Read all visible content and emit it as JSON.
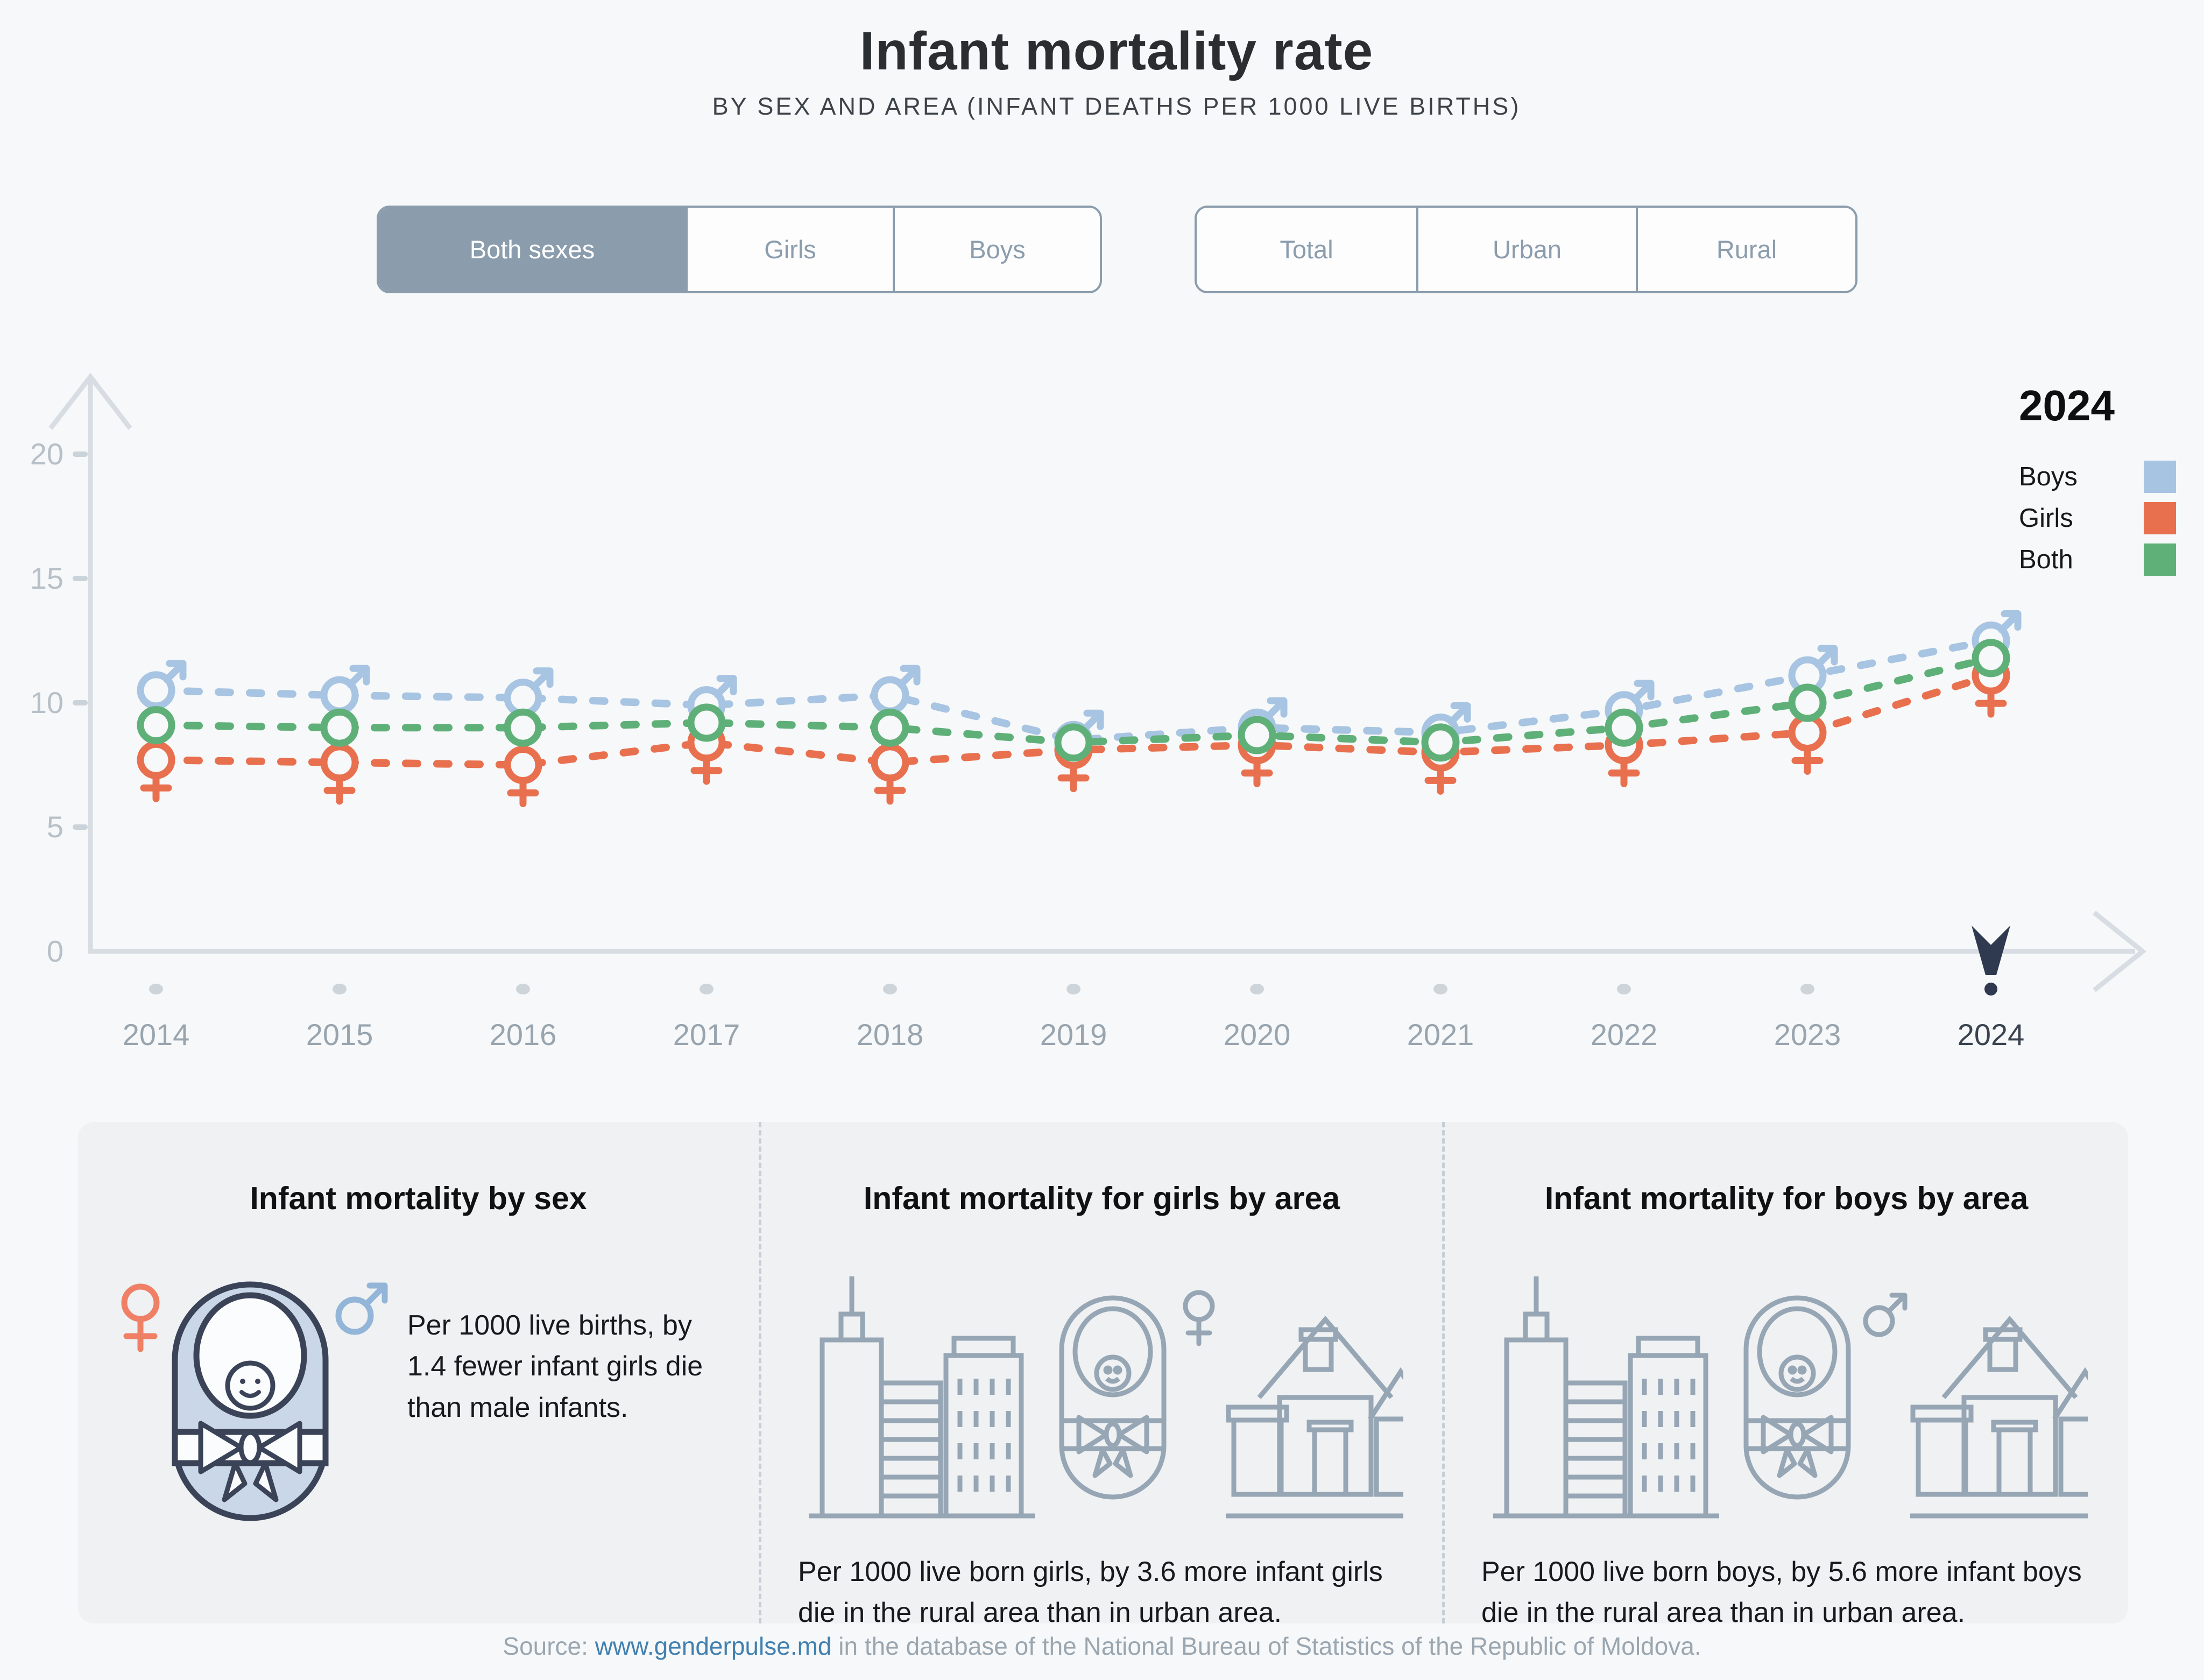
{
  "header": {
    "title": "Infant mortality rate",
    "subtitle": "BY SEX AND AREA (INFANT DEATHS PER 1000 LIVE BIRTHS)"
  },
  "controls": {
    "sex_toggle": {
      "options": [
        {
          "label": "Both sexes",
          "selected": true
        },
        {
          "label": "Girls",
          "selected": false
        },
        {
          "label": "Boys",
          "selected": false
        }
      ]
    },
    "area_toggle": {
      "options": [
        {
          "label": "Total",
          "selected": false
        },
        {
          "label": "Urban",
          "selected": false
        },
        {
          "label": "Rural",
          "selected": false
        }
      ]
    }
  },
  "legend": {
    "year": "2024",
    "items": [
      {
        "label": "Boys",
        "color": "#a7c4e2"
      },
      {
        "label": "Girls",
        "color": "#e8704f"
      },
      {
        "label": "Both",
        "color": "#5fb078"
      }
    ]
  },
  "chart_data": {
    "type": "line",
    "title": "Infant mortality rate by sex, total area",
    "x": [
      2014,
      2015,
      2016,
      2017,
      2018,
      2019,
      2020,
      2021,
      2022,
      2023,
      2024
    ],
    "series": [
      {
        "name": "Boys",
        "marker": "male",
        "color": "#a7c4e2",
        "values": [
          10.5,
          10.3,
          10.2,
          9.9,
          10.3,
          8.5,
          9.0,
          8.8,
          9.7,
          11.1,
          12.5
        ]
      },
      {
        "name": "Girls",
        "marker": "female",
        "color": "#e8704f",
        "values": [
          7.7,
          7.6,
          7.5,
          8.4,
          7.6,
          8.1,
          8.3,
          8.0,
          8.3,
          8.8,
          11.1
        ]
      },
      {
        "name": "Both",
        "marker": "circle",
        "color": "#5fb078",
        "values": [
          9.1,
          9.0,
          9.0,
          9.2,
          9.0,
          8.4,
          8.7,
          8.4,
          9.0,
          10.0,
          11.8
        ]
      }
    ],
    "ylim": [
      0,
      20
    ],
    "y_ticks": [
      0,
      5,
      10,
      15,
      20
    ],
    "selected_year": 2024,
    "grid": false,
    "legend_position": "top-right",
    "axis_color": "#d7dde2",
    "tick_label_color": "#b7c0c8",
    "year_label_color": "#98a4ae",
    "selected_year_color": "#2f3a50"
  },
  "cards": [
    {
      "title": "Infant mortality by sex",
      "text": "Per 1000 live births, by 1.4 fewer infant girls die than male infants."
    },
    {
      "title": "Infant mortality for girls by area",
      "text": "Per 1000 live born girls, by 3.6 more infant girls die in the rural area than in urban area."
    },
    {
      "title": "Infant mortality for boys by area",
      "text": "Per 1000 live born boys, by 5.6 more infant boys die in the rural area than in urban area."
    }
  ],
  "source": {
    "prefix": "Source: ",
    "link": "www.genderpulse.md",
    "suffix": " in the database of the National Bureau of Statistics of the Republic of Moldova."
  }
}
